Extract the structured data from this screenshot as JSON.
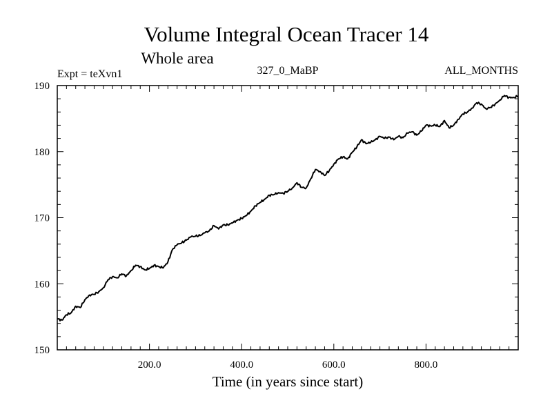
{
  "chart_data": {
    "type": "line",
    "title": "Volume Integral Ocean Tracer 14",
    "subtitle": "Whole area",
    "annotations": {
      "left": "Expt = teXvn1",
      "center": "327_0_MaBP",
      "right": "ALL_MONTHS"
    },
    "xlabel": "Time (in years since start)",
    "ylabel": "",
    "xlim": [
      0,
      1000
    ],
    "ylim": [
      150,
      190
    ],
    "x_ticks": [
      200,
      400,
      600,
      800
    ],
    "x_tick_labels": [
      "200.0",
      "400.0",
      "600.0",
      "800.0"
    ],
    "y_ticks": [
      150,
      160,
      170,
      180,
      190
    ],
    "y_tick_labels": [
      "150",
      "160",
      "170",
      "180",
      "190"
    ],
    "grid": false,
    "series": [
      {
        "name": "Volume Integral Ocean Tracer 14",
        "color": "#000000",
        "x": [
          0,
          10,
          20,
          30,
          40,
          50,
          60,
          70,
          80,
          90,
          100,
          110,
          120,
          130,
          140,
          150,
          160,
          170,
          180,
          190,
          200,
          210,
          220,
          230,
          240,
          250,
          260,
          270,
          280,
          290,
          300,
          310,
          320,
          330,
          340,
          350,
          360,
          370,
          380,
          390,
          400,
          410,
          420,
          430,
          440,
          450,
          460,
          470,
          480,
          490,
          500,
          510,
          520,
          530,
          540,
          550,
          560,
          570,
          580,
          590,
          600,
          610,
          620,
          630,
          640,
          650,
          660,
          670,
          680,
          690,
          700,
          710,
          720,
          730,
          740,
          750,
          760,
          770,
          780,
          790,
          800,
          810,
          820,
          830,
          840,
          850,
          860,
          870,
          880,
          890,
          900,
          910,
          920,
          930,
          940,
          950,
          960,
          970,
          980,
          990,
          1000
        ],
        "values": [
          154.7,
          154.5,
          155.3,
          155.6,
          156.6,
          156.4,
          157.6,
          158.3,
          158.4,
          158.8,
          159.4,
          160.6,
          161.1,
          160.9,
          161.5,
          161.2,
          162.0,
          162.8,
          162.6,
          162.1,
          162.3,
          162.8,
          162.6,
          162.4,
          163.3,
          165.2,
          165.9,
          166.2,
          166.6,
          167.1,
          167.2,
          167.3,
          167.7,
          168.0,
          168.8,
          168.3,
          168.9,
          168.9,
          169.2,
          169.6,
          169.9,
          170.3,
          171.0,
          171.8,
          172.3,
          172.8,
          173.4,
          173.5,
          173.8,
          173.7,
          174.0,
          174.5,
          175.3,
          174.6,
          174.5,
          175.9,
          177.3,
          177.0,
          176.4,
          177.1,
          178.1,
          178.9,
          179.2,
          178.9,
          179.9,
          180.7,
          181.8,
          181.2,
          181.4,
          181.8,
          182.3,
          182.0,
          182.2,
          181.8,
          182.3,
          182.1,
          182.8,
          183.0,
          182.5,
          183.1,
          184.0,
          183.9,
          184.0,
          183.8,
          184.7,
          183.6,
          184.0,
          184.9,
          185.7,
          186.0,
          186.6,
          187.4,
          187.2,
          186.5,
          186.7,
          187.2,
          187.8,
          188.5,
          188.2,
          188.2,
          188.4
        ]
      }
    ]
  }
}
